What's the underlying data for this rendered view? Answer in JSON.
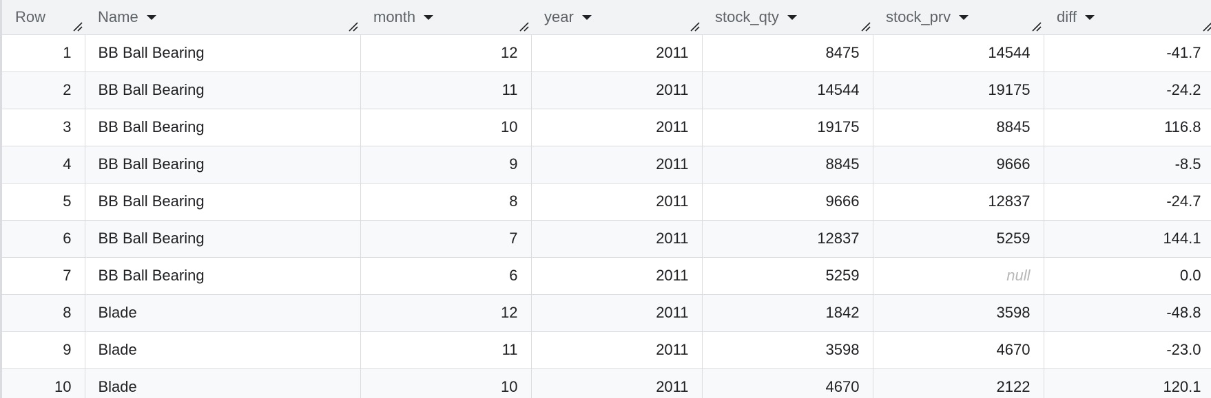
{
  "columns": [
    {
      "label": "Row",
      "sortable": false
    },
    {
      "label": "Name",
      "sortable": true
    },
    {
      "label": "month",
      "sortable": true
    },
    {
      "label": "year",
      "sortable": true
    },
    {
      "label": "stock_qty",
      "sortable": true
    },
    {
      "label": "stock_prv",
      "sortable": true
    },
    {
      "label": "diff",
      "sortable": true
    }
  ],
  "rows": [
    {
      "row": "1",
      "name": "BB Ball Bearing",
      "month": "12",
      "year": "2011",
      "stock_qty": "8475",
      "stock_prv": "14544",
      "diff": "-41.7"
    },
    {
      "row": "2",
      "name": "BB Ball Bearing",
      "month": "11",
      "year": "2011",
      "stock_qty": "14544",
      "stock_prv": "19175",
      "diff": "-24.2"
    },
    {
      "row": "3",
      "name": "BB Ball Bearing",
      "month": "10",
      "year": "2011",
      "stock_qty": "19175",
      "stock_prv": "8845",
      "diff": "116.8"
    },
    {
      "row": "4",
      "name": "BB Ball Bearing",
      "month": "9",
      "year": "2011",
      "stock_qty": "8845",
      "stock_prv": "9666",
      "diff": "-8.5"
    },
    {
      "row": "5",
      "name": "BB Ball Bearing",
      "month": "8",
      "year": "2011",
      "stock_qty": "9666",
      "stock_prv": "12837",
      "diff": "-24.7"
    },
    {
      "row": "6",
      "name": "BB Ball Bearing",
      "month": "7",
      "year": "2011",
      "stock_qty": "12837",
      "stock_prv": "5259",
      "diff": "144.1"
    },
    {
      "row": "7",
      "name": "BB Ball Bearing",
      "month": "6",
      "year": "2011",
      "stock_qty": "5259",
      "stock_prv": "null",
      "diff": "0.0"
    },
    {
      "row": "8",
      "name": "Blade",
      "month": "12",
      "year": "2011",
      "stock_qty": "1842",
      "stock_prv": "3598",
      "diff": "-48.8"
    },
    {
      "row": "9",
      "name": "Blade",
      "month": "11",
      "year": "2011",
      "stock_qty": "3598",
      "stock_prv": "4670",
      "diff": "-23.0"
    },
    {
      "row": "10",
      "name": "Blade",
      "month": "10",
      "year": "2011",
      "stock_qty": "4670",
      "stock_prv": "2122",
      "diff": "120.1"
    }
  ],
  "colors": {
    "header_bg": "#f1f3f4",
    "alt_row_bg": "#f8f9fa",
    "border": "#dadce0",
    "null_text": "#b7b7b7"
  },
  "icons": {
    "sort": "sort-arrow-down-icon",
    "resize": "column-resize-icon"
  }
}
